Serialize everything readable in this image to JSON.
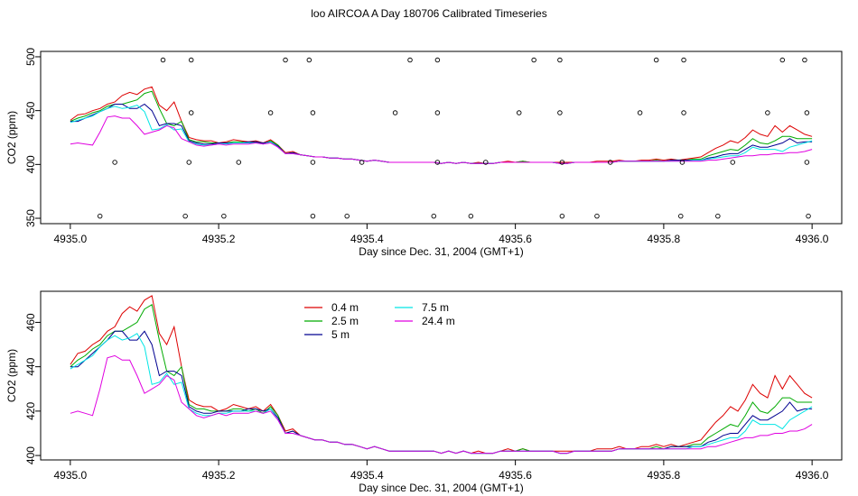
{
  "title": "loo AIRCOA A  Day 180706  Calibrated Timeseries",
  "chart_data": [
    {
      "type": "line",
      "name": "panel-top",
      "xlabel": "Day since Dec. 31, 2004 (GMT+1)",
      "ylabel": "CO2 (ppm)",
      "xlim": [
        4934.96,
        4936.04
      ],
      "ylim": [
        345,
        505
      ],
      "xticks": [
        4935.0,
        4935.2,
        4935.4,
        4935.6,
        4935.8,
        4936.0
      ],
      "xtick_labels": [
        "4935.0",
        "4935.2",
        "4935.4",
        "4935.6",
        "4935.8",
        "4936.0"
      ],
      "yticks": [
        350,
        400,
        450,
        500
      ],
      "ytick_labels": [
        "350",
        "400",
        "450",
        "500"
      ],
      "calibration_points": {
        "x500": [
          4935.125,
          4935.163,
          4935.29,
          4935.322,
          4935.458,
          4935.495,
          4935.625,
          4935.66,
          4935.79,
          4935.827,
          4935.96,
          4935.99
        ],
        "x448": [
          4935.163,
          4935.27,
          4935.327,
          4935.438,
          4935.495,
          4935.605,
          4935.66,
          4935.768,
          4935.827,
          4935.94,
          4935.993
        ],
        "x402": [
          4935.06,
          4935.16,
          4935.227,
          4935.327,
          4935.393,
          4935.495,
          4935.56,
          4935.663,
          4935.728,
          4935.825,
          4935.893,
          4935.993
        ],
        "x352": [
          4935.04,
          4935.155,
          4935.207,
          4935.327,
          4935.373,
          4935.49,
          4935.54,
          4935.663,
          4935.71,
          4935.823,
          4935.873,
          4935.995
        ]
      }
    },
    {
      "type": "line",
      "name": "panel-bottom",
      "xlabel": "Day since Dec. 31, 2004 (GMT+1)",
      "ylabel": "CO2 (ppm)",
      "xlim": [
        4934.96,
        4936.04
      ],
      "ylim": [
        398,
        474
      ],
      "xticks": [
        4935.0,
        4935.2,
        4935.4,
        4935.6,
        4935.8,
        4936.0
      ],
      "xtick_labels": [
        "4935.0",
        "4935.2",
        "4935.4",
        "4935.6",
        "4935.8",
        "4936.0"
      ],
      "yticks": [
        400,
        420,
        440,
        460
      ],
      "ytick_labels": [
        "400",
        "420",
        "440",
        "460"
      ],
      "legend": {
        "placement": "top-left",
        "entries": [
          {
            "label": "0.4 m",
            "color": "#dd0000"
          },
          {
            "label": "2.5 m",
            "color": "#00aa00"
          },
          {
            "label": "5 m",
            "color": "#000090"
          },
          {
            "label": "7.5 m",
            "color": "#00e5e5"
          },
          {
            "label": "24.4 m",
            "color": "#e000e0"
          }
        ]
      }
    }
  ],
  "series_common": {
    "x_start": 4935.0,
    "x_step": 0.01,
    "series": [
      {
        "name": "0.4 m",
        "color": "#dd0000",
        "values": [
          441,
          446,
          447,
          450,
          452,
          456,
          458,
          464,
          467,
          465,
          470,
          472,
          455,
          450,
          458,
          440,
          425,
          423,
          422,
          422,
          420,
          421,
          423,
          422,
          421,
          422,
          420,
          423,
          418,
          411,
          412,
          409,
          408,
          407,
          407,
          406,
          406,
          405,
          405,
          404,
          403,
          404,
          403,
          402,
          402,
          402,
          402,
          402,
          402,
          402,
          401,
          402,
          401,
          402,
          401,
          402,
          401,
          401,
          402,
          403,
          402,
          403,
          402,
          402,
          402,
          402,
          402,
          402,
          402,
          402,
          402,
          403,
          403,
          403,
          404,
          403,
          403,
          404,
          404,
          405,
          404,
          405,
          404,
          405,
          406,
          407,
          411,
          415,
          418,
          422,
          420,
          425,
          432,
          428,
          426,
          436,
          430,
          436,
          432,
          428,
          426
        ]
      },
      {
        "name": "2.5 m",
        "color": "#00aa00",
        "values": [
          440,
          443,
          445,
          448,
          450,
          454,
          456,
          456,
          458,
          460,
          466,
          468,
          452,
          438,
          436,
          440,
          423,
          421,
          421,
          420,
          420,
          420,
          421,
          421,
          420,
          421,
          419,
          422,
          418,
          410,
          411,
          409,
          408,
          407,
          407,
          406,
          406,
          405,
          405,
          404,
          403,
          404,
          403,
          402,
          402,
          402,
          402,
          402,
          402,
          402,
          401,
          402,
          401,
          402,
          401,
          401,
          401,
          401,
          402,
          402,
          402,
          403,
          402,
          402,
          402,
          402,
          401,
          401,
          402,
          402,
          402,
          402,
          402,
          402,
          403,
          403,
          403,
          403,
          403,
          404,
          403,
          404,
          404,
          404,
          405,
          405,
          408,
          410,
          412,
          414,
          413,
          418,
          424,
          420,
          419,
          422,
          426,
          426,
          424,
          424,
          424
        ]
      },
      {
        "name": "5 m",
        "color": "#000090",
        "values": [
          440,
          440,
          443,
          446,
          449,
          452,
          456,
          456,
          452,
          452,
          456,
          450,
          436,
          438,
          438,
          436,
          422,
          420,
          419,
          419,
          420,
          420,
          420,
          420,
          421,
          421,
          420,
          421,
          417,
          410,
          411,
          409,
          408,
          407,
          407,
          406,
          406,
          405,
          405,
          404,
          403,
          404,
          403,
          402,
          402,
          402,
          402,
          402,
          402,
          402,
          401,
          402,
          401,
          402,
          401,
          401,
          401,
          401,
          402,
          402,
          402,
          402,
          402,
          402,
          402,
          402,
          401,
          401,
          402,
          402,
          402,
          402,
          402,
          402,
          403,
          403,
          403,
          403,
          403,
          403,
          403,
          404,
          404,
          404,
          404,
          404,
          406,
          407,
          409,
          410,
          410,
          414,
          418,
          416,
          416,
          418,
          420,
          424,
          420,
          421,
          421
        ]
      },
      {
        "name": "7.5 m",
        "color": "#00e5e5",
        "values": [
          439,
          441,
          443,
          445,
          449,
          452,
          454,
          452,
          453,
          455,
          449,
          432,
          433,
          437,
          432,
          433,
          421,
          419,
          418,
          418,
          419,
          419,
          420,
          420,
          420,
          420,
          419,
          421,
          416,
          410,
          410,
          409,
          408,
          407,
          407,
          406,
          406,
          405,
          405,
          404,
          403,
          404,
          403,
          402,
          402,
          402,
          402,
          402,
          402,
          402,
          401,
          402,
          401,
          402,
          401,
          401,
          401,
          401,
          402,
          402,
          402,
          402,
          402,
          402,
          402,
          402,
          401,
          401,
          402,
          402,
          402,
          402,
          402,
          402,
          403,
          403,
          403,
          403,
          403,
          403,
          403,
          403,
          403,
          403,
          404,
          404,
          405,
          406,
          407,
          408,
          408,
          411,
          416,
          414,
          414,
          414,
          412,
          416,
          418,
          420,
          422
        ]
      },
      {
        "name": "24.4 m",
        "color": "#e000e0",
        "values": [
          419,
          420,
          419,
          418,
          430,
          444,
          445,
          443,
          443,
          436,
          428,
          430,
          432,
          436,
          434,
          424,
          421,
          418,
          417,
          418,
          419,
          418,
          419,
          419,
          419,
          420,
          419,
          420,
          416,
          410,
          410,
          409,
          408,
          407,
          407,
          406,
          406,
          405,
          405,
          404,
          403,
          404,
          403,
          402,
          402,
          402,
          402,
          402,
          402,
          402,
          401,
          402,
          401,
          402,
          401,
          401,
          401,
          401,
          402,
          402,
          402,
          402,
          402,
          402,
          402,
          402,
          401,
          401,
          402,
          402,
          402,
          402,
          402,
          402,
          403,
          403,
          403,
          403,
          403,
          403,
          403,
          403,
          403,
          403,
          403,
          403,
          404,
          404,
          405,
          406,
          407,
          408,
          408,
          409,
          409,
          410,
          410,
          411,
          411,
          412,
          414
        ]
      }
    ]
  }
}
